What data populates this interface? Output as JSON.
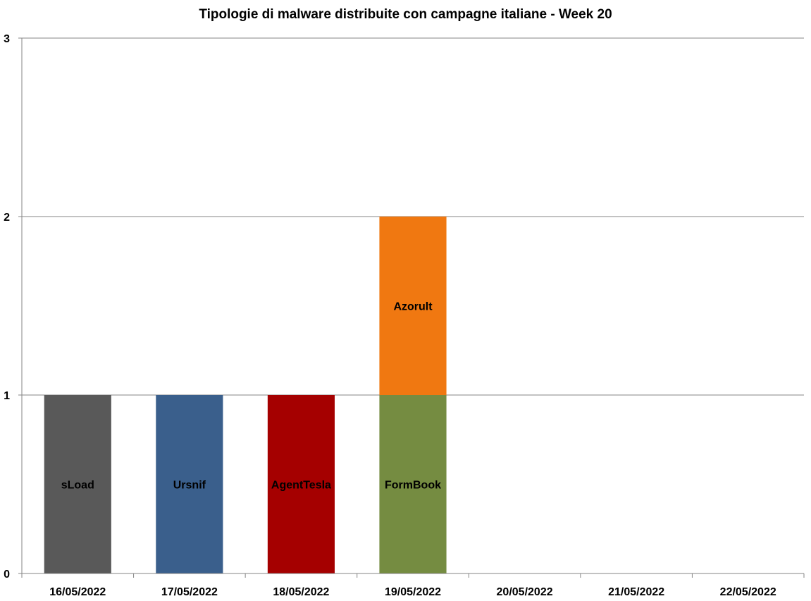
{
  "chart_data": {
    "type": "bar",
    "stacked": true,
    "title": "Tipologie di malware distribuite con campagne italiane - Week 20",
    "xlabel": "",
    "ylabel": "",
    "categories": [
      "16/05/2022",
      "17/05/2022",
      "18/05/2022",
      "19/05/2022",
      "20/05/2022",
      "21/05/2022",
      "22/05/2022"
    ],
    "ylim": [
      0,
      3
    ],
    "yticks": [
      0,
      1,
      2,
      3
    ],
    "grid": true,
    "legend": "none",
    "series": [
      {
        "name": "sLoad",
        "color": "#595959",
        "values": [
          1,
          0,
          0,
          0,
          0,
          0,
          0
        ]
      },
      {
        "name": "Ursnif",
        "color": "#3A5F8C",
        "values": [
          0,
          1,
          0,
          0,
          0,
          0,
          0
        ]
      },
      {
        "name": "AgentTesla",
        "color": "#A50000",
        "values": [
          0,
          0,
          1,
          0,
          0,
          0,
          0
        ]
      },
      {
        "name": "FormBook",
        "color": "#758C41",
        "values": [
          0,
          0,
          0,
          1,
          0,
          0,
          0
        ]
      },
      {
        "name": "Azorult",
        "color": "#F07811",
        "values": [
          0,
          0,
          0,
          1,
          0,
          0,
          0
        ]
      }
    ]
  }
}
